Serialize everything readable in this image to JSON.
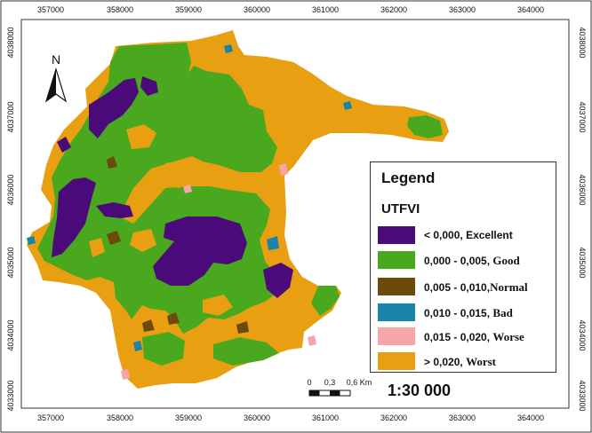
{
  "map": {
    "north_label": "N",
    "x_ticks": [
      "357000",
      "358000",
      "359000",
      "360000",
      "361000",
      "362000",
      "363000",
      "364000"
    ],
    "y_ticks": [
      "4038000",
      "4037000",
      "4036000",
      "4035000",
      "4034000",
      "4033000"
    ]
  },
  "legend": {
    "title": "Legend",
    "subtitle": "UTFVI",
    "items": [
      {
        "range": "< 0,000,",
        "label": "Excellent",
        "color": "#4b0a7a"
      },
      {
        "range": "0,000 - 0,005,",
        "label": "Good",
        "color": "#4aa81e"
      },
      {
        "range": "0,005 - 0,010,",
        "label": "Normal",
        "color": "#6e4a0a"
      },
      {
        "range": "0,010 - 0,015,",
        "label": "Bad",
        "color": "#1a84a8"
      },
      {
        "range": "0,015 - 0,020,",
        "label": "Worse",
        "color": "#f7a5a5"
      },
      {
        "range": "> 0,020,",
        "label": "Worst",
        "color": "#e8a012"
      }
    ]
  },
  "scale": {
    "ticks": [
      "0",
      "0,3",
      "0,6 Km"
    ],
    "ratio": "1:30 000"
  }
}
